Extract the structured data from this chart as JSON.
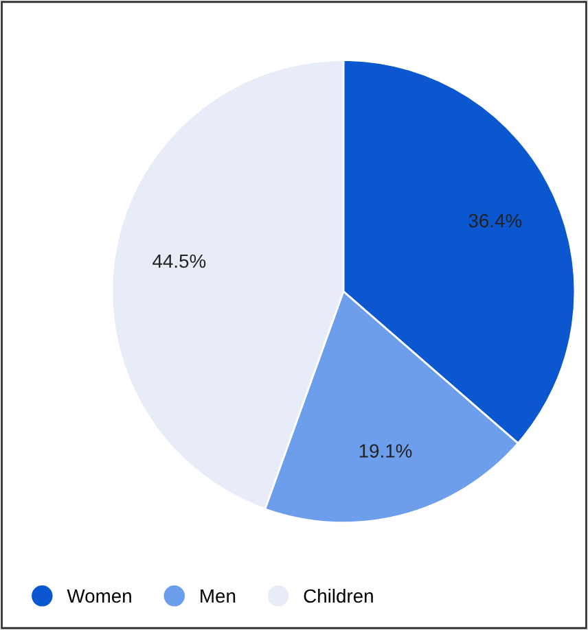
{
  "chart_data": {
    "type": "pie",
    "categories": [
      "Women",
      "Men",
      "Children"
    ],
    "values": [
      36.4,
      19.1,
      44.5
    ],
    "colors": [
      "#0b57d0",
      "#6d9eeb",
      "#e8ecf8"
    ],
    "value_labels": [
      "36.4%",
      "19.1%",
      "44.5%"
    ],
    "legend": "bottom left"
  }
}
